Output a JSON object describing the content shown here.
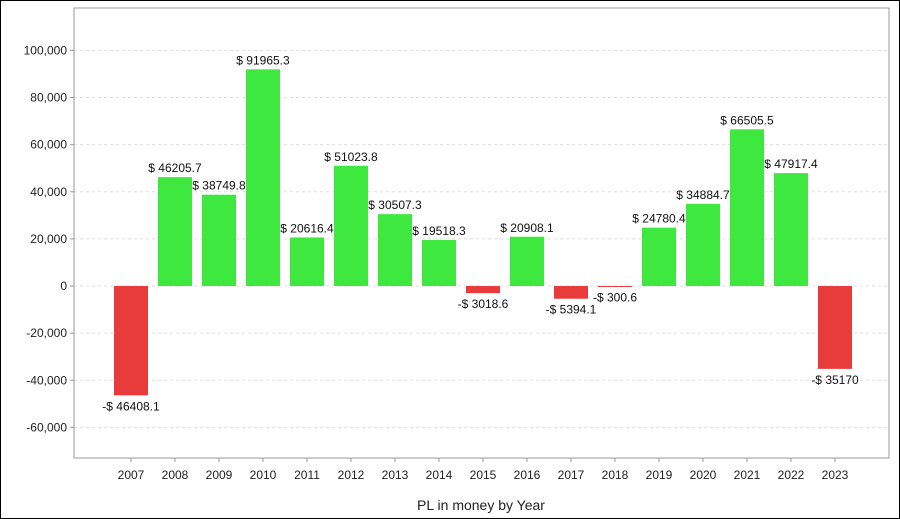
{
  "chart_data": {
    "type": "bar",
    "title": "",
    "xlabel": "PL in money by Year",
    "ylabel": "",
    "categories": [
      "2007",
      "2008",
      "2009",
      "2010",
      "2011",
      "2012",
      "2013",
      "2014",
      "2015",
      "2016",
      "2017",
      "2018",
      "2019",
      "2020",
      "2021",
      "2022",
      "2023"
    ],
    "values": [
      -46408.1,
      46205.7,
      38749.8,
      91965.3,
      20616.4,
      51023.8,
      30507.3,
      19518.3,
      -3018.6,
      20908.1,
      -5394.1,
      -300.6,
      24780.4,
      34884.7,
      66505.5,
      47917.4,
      -35170
    ],
    "data_labels": [
      "-$ 46408.1",
      "$ 46205.7",
      "$ 38749.8",
      "$ 91965.3",
      "$ 20616.4",
      "$ 51023.8",
      "$ 30507.3",
      "$ 19518.3",
      "-$ 3018.6",
      "$ 20908.1",
      "-$ 5394.1",
      "-$ 300.6",
      "$ 24780.4",
      "$ 34884.7",
      "$ 66505.5",
      "$ 47917.4",
      "-$ 35170"
    ],
    "ylim": [
      -73000,
      118000
    ],
    "yticks": [
      -60000,
      -40000,
      -20000,
      0,
      20000,
      40000,
      60000,
      80000,
      100000
    ],
    "ytick_labels": [
      "-60,000",
      "-40,000",
      "-20,000",
      "0",
      "20,000",
      "40,000",
      "60,000",
      "80,000",
      "100,000"
    ],
    "grid": true,
    "legend": "none",
    "colors": {
      "positive": "#3ee83e",
      "negative": "#e83c3c",
      "grid": "#dddddd",
      "axis": "#999999"
    }
  }
}
